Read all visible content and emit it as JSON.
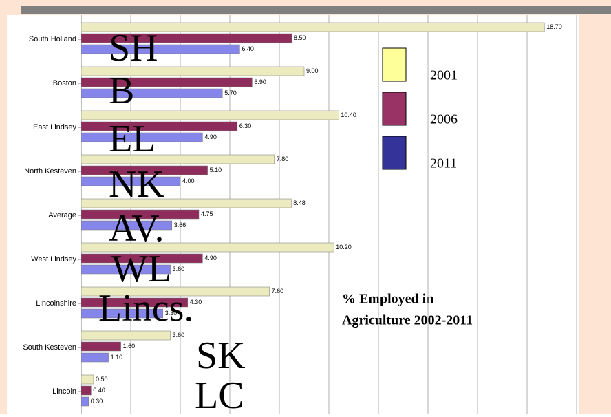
{
  "chart_data": {
    "type": "bar",
    "orientation": "horizontal",
    "title_lines": [
      "% Employed in",
      "Agriculture 2002-2011"
    ],
    "categories": [
      "South Holland",
      "Boston",
      "East Lindsey",
      "North Kesteven",
      "Average",
      "West Lindsey",
      "Lincolnshire",
      "South Kesteven",
      "Lincoln"
    ],
    "annotations": [
      "SH",
      "B",
      "EL",
      "NK",
      "AV.",
      "WL",
      "Lincs.",
      "SK",
      "LC"
    ],
    "series": [
      {
        "name": "2001",
        "color": "#ecebbf",
        "legend_color": "#ffff99",
        "values": [
          18.7,
          9.0,
          10.4,
          7.8,
          8.48,
          10.2,
          7.6,
          3.6,
          0.5
        ],
        "value_labels": [
          "18.70",
          "9.00",
          "10.40",
          "7.80",
          "8.48",
          "10.20",
          "7.60",
          "3.60",
          "0.50"
        ]
      },
      {
        "name": "2006",
        "color": "#8e2d5c",
        "legend_color": "#993366",
        "values": [
          8.5,
          6.9,
          6.3,
          5.1,
          4.75,
          4.9,
          4.3,
          1.6,
          0.4
        ],
        "value_labels": [
          "8.50",
          "6.90",
          "6.30",
          "5.10",
          "4.75",
          "4.90",
          "4.30",
          "1.60",
          "0.40"
        ]
      },
      {
        "name": "2011",
        "color": "#8585ea",
        "legend_color": "#333399",
        "values": [
          6.4,
          5.7,
          4.9,
          4.0,
          3.66,
          3.6,
          3.3,
          1.1,
          0.3
        ],
        "value_labels": [
          "6.40",
          "5.70",
          "4.90",
          "4.00",
          "3.66",
          "3.60",
          "3.30",
          "1.10",
          "0.30"
        ]
      }
    ],
    "xlim": [
      0,
      20
    ],
    "xticks": [
      0,
      2,
      4,
      6,
      8,
      10,
      12,
      14,
      16,
      18,
      20
    ],
    "grid": true
  }
}
